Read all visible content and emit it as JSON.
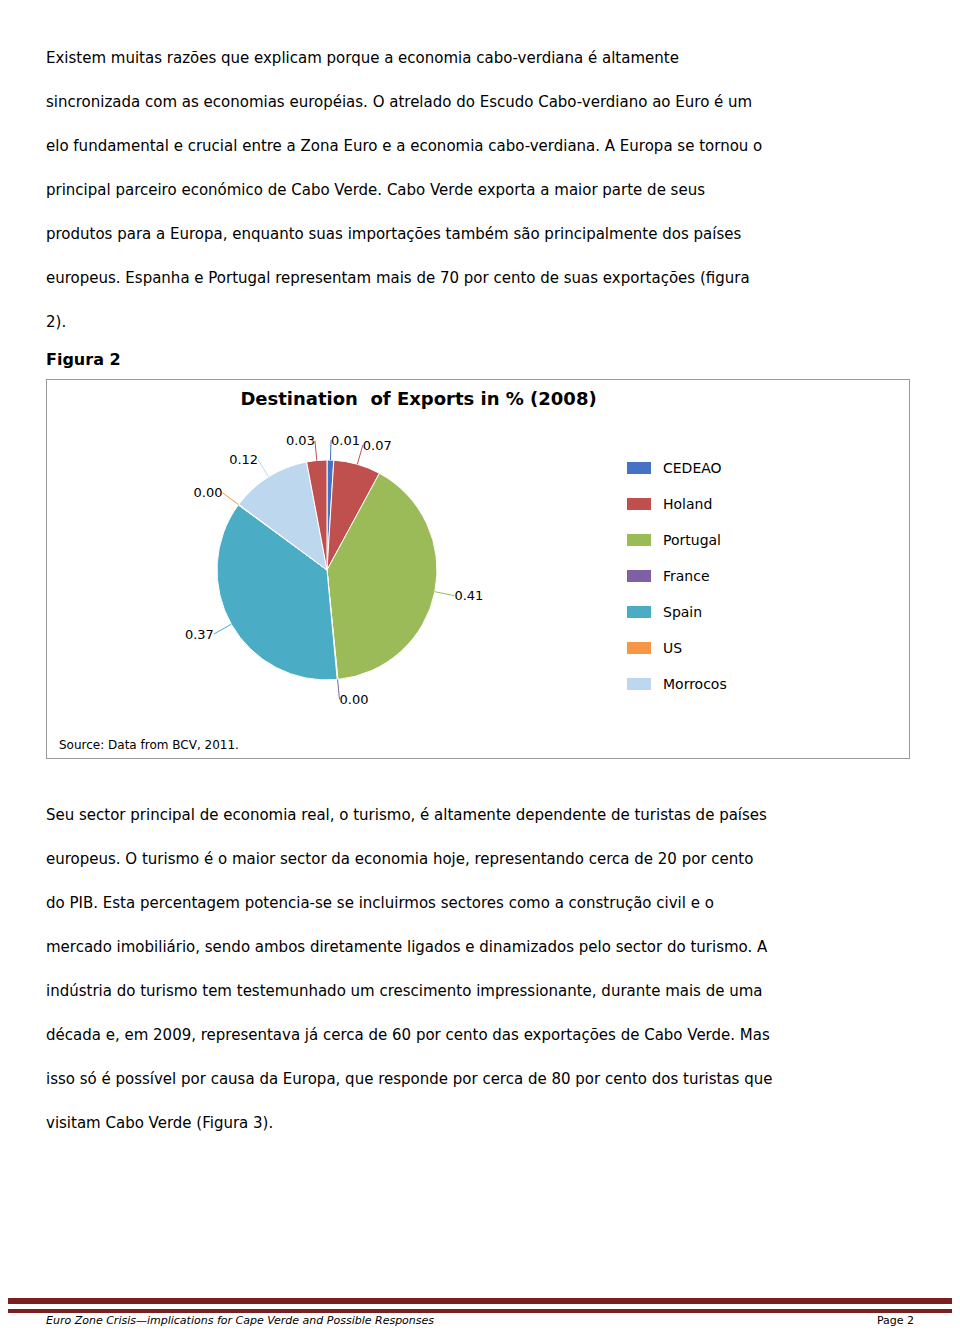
{
  "chart_data": {
    "type": "pie",
    "title": "Destination  of Exports in % (2008)",
    "categories": [
      "CEDEAO",
      "Holand",
      "Portugal",
      "France",
      "Spain",
      "US",
      "Morrocos",
      null
    ],
    "values": [
      0.01,
      0.07,
      0.41,
      0.001,
      0.37,
      0.001,
      0.12,
      0.03
    ],
    "value_labels": [
      "0.01",
      "0.07",
      "0.41",
      "0.00",
      "0.37",
      "0.00",
      "0.12",
      "0.03"
    ],
    "colors": [
      "#4472C4",
      "#C0504D",
      "#9BBB59",
      "#7F5FA5",
      "#4BACC6",
      "#F79646",
      "#BDD7EE",
      "#C0504D"
    ],
    "data_labels": true,
    "legend": "right",
    "annotations": [
      "Source: Data from BCV, 2011."
    ]
  },
  "page": {
    "figure_label": "Figura 2",
    "paragraphs_before": [
      "Existem muitas razões que explicam porque a economia cabo-verdiana é altamente",
      "sincronizada com as economias européias. O atrelado do Escudo Cabo-verdiano ao Euro é um",
      "elo fundamental e crucial entre a Zona Euro e a economia cabo-verdiana. A Europa se tornou o",
      "principal parceiro económico de Cabo Verde. Cabo Verde exporta a maior parte de seus",
      "produtos para a Europa, enquanto suas importações também são principalmente dos países",
      "europeus. Espanha e Portugal representam mais de 70 por cento de suas exportações (figura",
      "2)."
    ],
    "paragraphs_after": [
      "Seu sector principal de economia real, o turismo, é altamente dependente de turistas de países",
      "europeus. O turismo é o maior sector da economia hoje, representando cerca de 20 por cento",
      "do PIB. Esta percentagem potencia-se se incluirmos sectores como a construção civil e o",
      "mercado imobiliário, sendo ambos diretamente ligados e dinamizados pelo sector do turismo. A",
      "indústria do turismo tem testemunhado um crescimento impressionante, durante mais de uma",
      "década e, em 2009, representava já cerca de 60 por cento das exportações de Cabo Verde. Mas",
      "isso só é possível por causa da Europa, que responde por cerca de 80 por cento dos turistas que",
      "visitam Cabo Verde (Figura 3)."
    ],
    "footer_left": "Euro Zone Crisis—implications for Cape Verde and Possible Responses",
    "footer_right": "Page 2",
    "footer_color": "#7B2020"
  }
}
